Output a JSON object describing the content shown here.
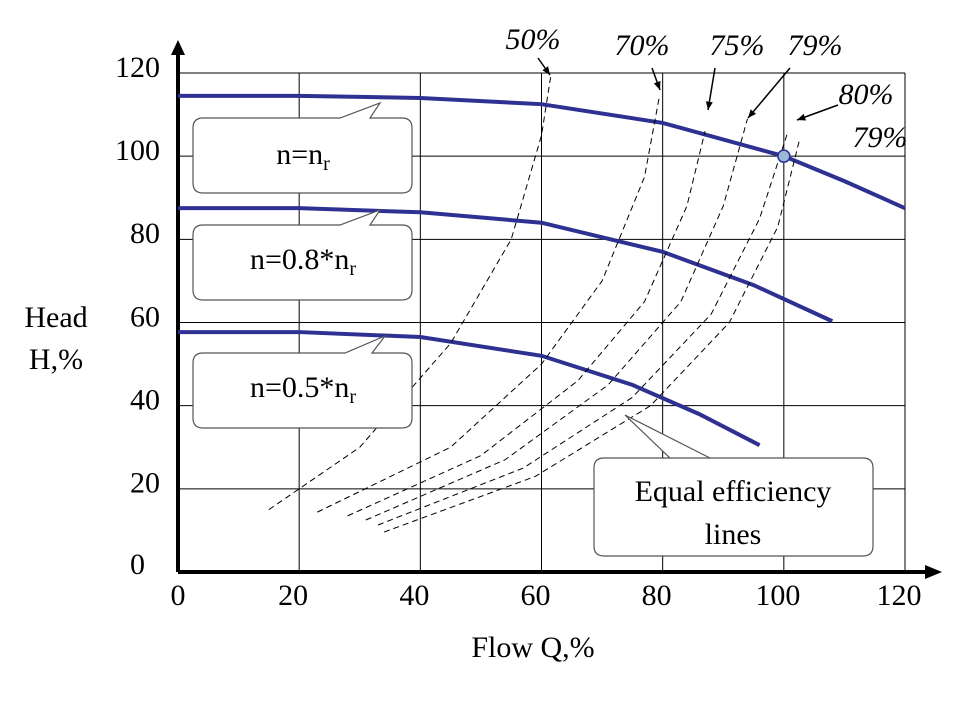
{
  "chart_data": {
    "type": "line",
    "xlabel": "Flow  Q,%",
    "ylabel": [
      "Head",
      "H,%"
    ],
    "xlim": [
      0,
      120
    ],
    "ylim": [
      0,
      120
    ],
    "xticks": [
      0,
      20,
      40,
      60,
      80,
      100,
      120
    ],
    "yticks": [
      0,
      20,
      40,
      60,
      80,
      100,
      120
    ],
    "grid": true,
    "series": [
      {
        "label": {
          "text": "n=n",
          "sub": "r"
        },
        "color": "#2e3192",
        "style": "solid",
        "x": [
          0,
          20,
          40,
          60,
          80,
          100,
          110,
          120
        ],
        "values": [
          114.5,
          114.5,
          114,
          112.5,
          108,
          100,
          94,
          87.5
        ]
      },
      {
        "label": {
          "text": "n=0.8*n",
          "sub": "r"
        },
        "color": "#2e3192",
        "style": "solid",
        "x": [
          0,
          20,
          40,
          60,
          80,
          95,
          108
        ],
        "values": [
          87.5,
          87.5,
          86.5,
          84,
          77,
          69,
          60.3
        ]
      },
      {
        "label": {
          "text": "n=0.5*n",
          "sub": "r"
        },
        "color": "#2e3192",
        "style": "solid",
        "x": [
          0,
          20,
          40,
          60,
          75,
          86,
          96
        ],
        "values": [
          57.7,
          57.7,
          56.5,
          52,
          45,
          38,
          30.5
        ]
      },
      {
        "name": "50%",
        "color": "#000000",
        "style": "dashed",
        "x": [
          15,
          30,
          45,
          55,
          60,
          61.5
        ],
        "values": [
          15,
          30,
          55,
          80,
          105,
          119
        ]
      },
      {
        "name": "70%",
        "color": "#000000",
        "style": "dashed",
        "x": [
          23,
          45,
          60,
          70,
          77,
          79.5
        ],
        "values": [
          14.4,
          30,
          50,
          70,
          95,
          114.7
        ]
      },
      {
        "name": "75%",
        "color": "#000000",
        "style": "dashed",
        "x": [
          28,
          50,
          66,
          77,
          84,
          87
        ],
        "values": [
          13.5,
          28,
          46,
          65,
          88,
          106
        ]
      },
      {
        "name": "79%",
        "color": "#000000",
        "style": "dashed",
        "x": [
          31,
          54,
          71,
          83,
          90,
          94
        ],
        "values": [
          12.5,
          27,
          45,
          65,
          88,
          109
        ]
      },
      {
        "name": "80%",
        "color": "#000000",
        "style": "dashed",
        "x": [
          33,
          57,
          75,
          88,
          96,
          100.7
        ],
        "values": [
          11.3,
          25,
          42,
          62,
          85,
          106
        ]
      },
      {
        "name": "79%",
        "color": "#000000",
        "style": "dashed",
        "x": [
          34,
          59,
          78,
          91,
          99,
          102.6
        ],
        "values": [
          9.6,
          23,
          40,
          60,
          83,
          104
        ]
      }
    ],
    "point": {
      "x": 100,
      "y": 100
    },
    "annotation": [
      "Equal efficiency",
      "lines"
    ]
  }
}
